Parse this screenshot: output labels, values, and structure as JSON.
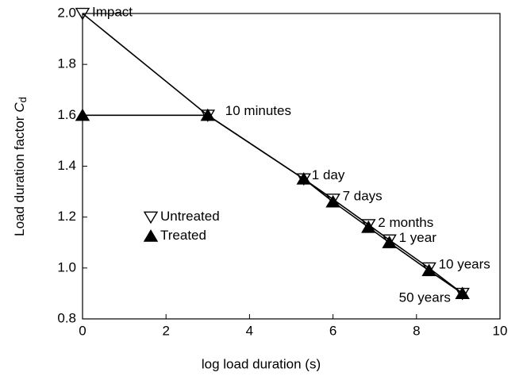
{
  "chart_data": {
    "type": "line",
    "xlabel": "log load duration (s)",
    "ylabel": "Load duration factor",
    "ylabel_symbol": "C",
    "ylabel_subscript": "d",
    "xlim": [
      0,
      10
    ],
    "xticks": [
      0,
      2,
      4,
      6,
      8,
      10
    ],
    "ylim": [
      0.8,
      2.0
    ],
    "yticks": [
      0.8,
      {
        "value": 1.0,
        "label": "1.0"
      },
      1.2,
      1.4,
      1.6,
      1.8,
      {
        "value": 2.0,
        "label": "2.0"
      }
    ],
    "legend": "left",
    "point_labels": [
      "Impact",
      "10 minutes",
      "1 day",
      "7 days",
      "2 months",
      "1 year",
      "10 years",
      "50 years"
    ],
    "series": [
      {
        "name": "Untreated",
        "color": "#000000",
        "marker": "open-down-triangle",
        "x": [
          0,
          3,
          5.3,
          6,
          6.85,
          7.35,
          8.3,
          9.1
        ],
        "values": [
          2.0,
          1.6,
          1.35,
          1.27,
          1.17,
          1.11,
          1.0,
          0.9
        ]
      },
      {
        "name": "Treated",
        "color": "#000000",
        "marker": "filled-up-triangle",
        "x": [
          0,
          3,
          5.3,
          6,
          6.85,
          7.35,
          8.3,
          9.1
        ],
        "values": [
          1.6,
          1.6,
          1.35,
          1.26,
          1.16,
          1.1,
          0.99,
          0.9
        ]
      }
    ]
  }
}
